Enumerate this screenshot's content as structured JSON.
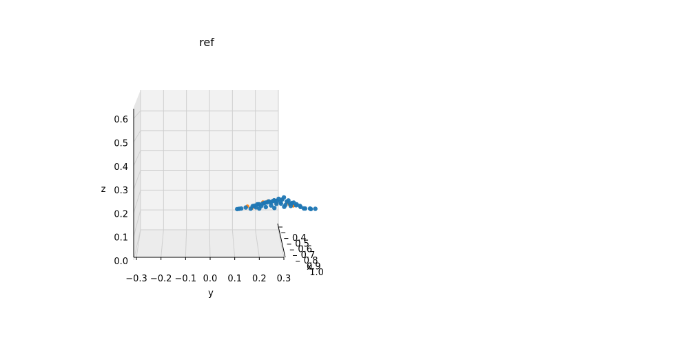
{
  "chart_data": {
    "type": "scatter",
    "projection": "3d",
    "title": "ref",
    "xlabel": "x",
    "ylabel": "y",
    "zlabel": "z",
    "grid": true,
    "xlim": [
      0.3,
      1.0
    ],
    "ylim": [
      -0.3,
      0.3
    ],
    "zlim": [
      0.0,
      0.65
    ],
    "x_ticks": [
      "0.4",
      "0.5",
      "0.6",
      "0.7",
      "0.8",
      "0.9",
      "1.0"
    ],
    "y_ticks": [
      "−0.3",
      "−0.2",
      "−0.1",
      "0.0",
      "0.1",
      "0.2",
      "0.3"
    ],
    "z_ticks": [
      "0.0",
      "0.1",
      "0.2",
      "0.3",
      "0.4",
      "0.5",
      "0.6"
    ],
    "series": [
      {
        "color": "#ff7f0e",
        "points": [
          [
            0.35,
            0.05,
            0.205
          ],
          [
            0.36,
            0.12,
            0.23
          ],
          [
            0.37,
            0.17,
            0.24
          ],
          [
            0.38,
            0.09,
            0.228
          ],
          [
            0.34,
            0.22,
            0.215
          ],
          [
            0.36,
            0.19,
            0.226
          ],
          [
            0.37,
            0.14,
            0.236
          ],
          [
            0.35,
            0.08,
            0.222
          ],
          [
            0.36,
            0.03,
            0.212
          ],
          [
            0.38,
            0.11,
            0.232
          ],
          [
            0.35,
            0.15,
            0.225
          ],
          [
            0.37,
            0.2,
            0.218
          ]
        ]
      },
      {
        "color": "#1f77b4",
        "points": [
          [
            0.38,
            0.04,
            0.2
          ],
          [
            0.39,
            0.06,
            0.205
          ],
          [
            0.4,
            0.08,
            0.21
          ],
          [
            0.39,
            0.1,
            0.206
          ],
          [
            0.4,
            0.12,
            0.212
          ],
          [
            0.41,
            0.14,
            0.218
          ],
          [
            0.4,
            0.16,
            0.22
          ],
          [
            0.39,
            0.18,
            0.215
          ],
          [
            0.4,
            0.2,
            0.21
          ],
          [
            0.41,
            0.22,
            0.212
          ],
          [
            0.4,
            0.24,
            0.206
          ],
          [
            0.39,
            0.26,
            0.2
          ],
          [
            0.37,
            0.05,
            0.212
          ],
          [
            0.36,
            0.07,
            0.22
          ],
          [
            0.37,
            0.09,
            0.222
          ],
          [
            0.36,
            0.11,
            0.228
          ],
          [
            0.37,
            0.13,
            0.232
          ],
          [
            0.36,
            0.15,
            0.235
          ],
          [
            0.37,
            0.17,
            0.24
          ],
          [
            0.36,
            0.19,
            0.232
          ],
          [
            0.37,
            0.21,
            0.225
          ],
          [
            0.36,
            0.23,
            0.22
          ],
          [
            0.35,
            0.06,
            0.215
          ],
          [
            0.34,
            0.08,
            0.222
          ],
          [
            0.35,
            0.1,
            0.226
          ],
          [
            0.34,
            0.12,
            0.234
          ],
          [
            0.35,
            0.14,
            0.238
          ],
          [
            0.34,
            0.16,
            0.245
          ],
          [
            0.35,
            0.18,
            0.25
          ],
          [
            0.34,
            0.2,
            0.238
          ],
          [
            0.35,
            0.22,
            0.228
          ],
          [
            0.42,
            0.13,
            0.2
          ],
          [
            0.42,
            0.17,
            0.205
          ],
          [
            0.41,
            0.07,
            0.198
          ],
          [
            0.42,
            0.25,
            0.198
          ],
          [
            0.41,
            0.28,
            0.196
          ],
          [
            0.39,
            0.28,
            0.2
          ],
          [
            0.4,
            0.3,
            0.198
          ],
          [
            0.38,
            0.02,
            0.205
          ],
          [
            0.39,
            0.0,
            0.2
          ],
          [
            0.4,
            -0.01,
            0.198
          ],
          [
            0.41,
            -0.02,
            0.196
          ],
          [
            0.38,
            0.1,
            0.226
          ],
          [
            0.38,
            0.14,
            0.232
          ],
          [
            0.38,
            0.2,
            0.222
          ],
          [
            0.38,
            0.24,
            0.212
          ],
          [
            0.39,
            0.12,
            0.225
          ],
          [
            0.39,
            0.16,
            0.228
          ]
        ]
      }
    ]
  }
}
